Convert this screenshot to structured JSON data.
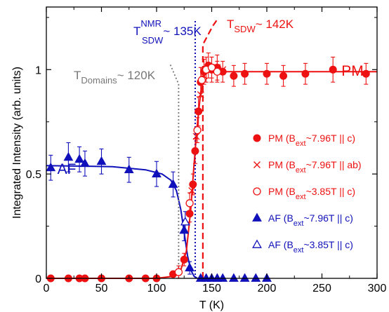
{
  "chart_data": {
    "type": "scatter",
    "xlabel": "T (K)",
    "ylabel": "Integrated Intensity (arb. units)",
    "xlim": [
      0,
      300
    ],
    "ylim": [
      0,
      1.3
    ],
    "xticks": [
      0,
      50,
      100,
      150,
      200,
      250,
      300
    ],
    "yticks": [
      {
        "value": 0,
        "label": "0"
      },
      {
        "value": 0.5,
        "label": "0.5"
      },
      {
        "value": 1,
        "label": "1"
      }
    ],
    "grid": false,
    "legend_position": "right",
    "colors": {
      "pm": "#ee1111",
      "af": "#1111bb",
      "nmr": "#1111bb",
      "domains": "#777777",
      "axis": "#000000"
    },
    "region_labels": {
      "pm": "PM",
      "af": "AF"
    },
    "annotations": {
      "nmr": {
        "main": "T",
        "sup": "NMR",
        "sub": "SDW",
        "rest": "~ 135K",
        "x": 135
      },
      "sdw": {
        "main": "T",
        "sub": "SDW",
        "rest": "~ 142K",
        "x": 142
      },
      "domains": {
        "main": "T",
        "sub": "Domains",
        "rest": "~ 120K",
        "x": 120
      }
    },
    "series": [
      {
        "name": "PM (B_ext~7.96T || c)",
        "legend_parts": [
          "PM (B",
          "ext",
          "~7.96T || c)"
        ],
        "marker": "filled-circle",
        "color": "#ee1111",
        "points": [
          {
            "x": 4,
            "y": 0.0
          },
          {
            "x": 20,
            "y": 0.0
          },
          {
            "x": 30,
            "y": 0.0
          },
          {
            "x": 35,
            "y": 0.0
          },
          {
            "x": 50,
            "y": 0.0
          },
          {
            "x": 75,
            "y": 0.0
          },
          {
            "x": 90,
            "y": 0.0
          },
          {
            "x": 100,
            "y": 0.0
          },
          {
            "x": 115,
            "y": 0.02
          },
          {
            "x": 125,
            "y": 0.09,
            "err": 0.03
          },
          {
            "x": 130,
            "y": 0.31,
            "err": 0.04
          },
          {
            "x": 133,
            "y": 0.45,
            "err": 0.05
          },
          {
            "x": 135,
            "y": 0.61,
            "err": 0.06
          },
          {
            "x": 138,
            "y": 0.8,
            "err": 0.07
          },
          {
            "x": 140,
            "y": 0.94,
            "err": 0.07
          },
          {
            "x": 143,
            "y": 0.99,
            "err": 0.06
          },
          {
            "x": 147,
            "y": 1.02,
            "err": 0.06
          },
          {
            "x": 150,
            "y": 1.0,
            "err": 0.06
          },
          {
            "x": 155,
            "y": 1.01,
            "err": 0.06
          },
          {
            "x": 160,
            "y": 0.99,
            "err": 0.05
          },
          {
            "x": 170,
            "y": 0.97,
            "err": 0.05
          },
          {
            "x": 180,
            "y": 0.98,
            "err": 0.05
          },
          {
            "x": 200,
            "y": 0.98,
            "err": 0.05
          },
          {
            "x": 215,
            "y": 0.97,
            "err": 0.05
          },
          {
            "x": 235,
            "y": 0.98,
            "err": 0.05
          },
          {
            "x": 260,
            "y": 1.0,
            "err": 0.06
          },
          {
            "x": 290,
            "y": 0.98,
            "err": 0.05
          }
        ]
      },
      {
        "name": "PM (B_ext~7.96T || ab)",
        "legend_parts": [
          "PM (B",
          "ext",
          "~7.96T || ab)"
        ],
        "marker": "cross",
        "color": "#ee1111",
        "points": [
          {
            "x": 132,
            "y": 0.42
          },
          {
            "x": 136,
            "y": 0.68
          },
          {
            "x": 140,
            "y": 0.88
          },
          {
            "x": 143,
            "y": 0.97
          },
          {
            "x": 150,
            "y": 1.0
          },
          {
            "x": 155,
            "y": 1.01
          },
          {
            "x": 160,
            "y": 1.0
          }
        ]
      },
      {
        "name": "PM (B_ext~3.85T || c)",
        "legend_parts": [
          "PM (B",
          "ext",
          "~3.85T || c)"
        ],
        "marker": "open-circle",
        "color": "#ee1111",
        "points": [
          {
            "x": 120,
            "y": 0.03,
            "err": 0.03
          },
          {
            "x": 130,
            "y": 0.36,
            "err": 0.05
          },
          {
            "x": 137,
            "y": 0.71,
            "err": 0.06
          },
          {
            "x": 141,
            "y": 0.95,
            "err": 0.06
          },
          {
            "x": 145,
            "y": 1.0,
            "err": 0.06
          },
          {
            "x": 150,
            "y": 1.01,
            "err": 0.05
          },
          {
            "x": 155,
            "y": 0.99,
            "err": 0.05
          }
        ]
      },
      {
        "name": "AF (B_ext~7.96T || c)",
        "legend_parts": [
          "AF (B",
          "ext",
          "~7.96T || c)"
        ],
        "marker": "filled-triangle",
        "color": "#1111bb",
        "points": [
          {
            "x": 4,
            "y": 0.53,
            "err": 0.06
          },
          {
            "x": 20,
            "y": 0.58,
            "err": 0.07
          },
          {
            "x": 30,
            "y": 0.57,
            "err": 0.06
          },
          {
            "x": 35,
            "y": 0.55,
            "err": 0.06
          },
          {
            "x": 50,
            "y": 0.56,
            "err": 0.06
          },
          {
            "x": 75,
            "y": 0.52,
            "err": 0.06
          },
          {
            "x": 100,
            "y": 0.5,
            "err": 0.06
          },
          {
            "x": 115,
            "y": 0.45,
            "err": 0.06
          },
          {
            "x": 125,
            "y": 0.23,
            "err": 0.05
          },
          {
            "x": 130,
            "y": 0.05,
            "err": 0.03
          },
          {
            "x": 140,
            "y": 0.0
          },
          {
            "x": 145,
            "y": 0.0
          },
          {
            "x": 150,
            "y": 0.0
          },
          {
            "x": 155,
            "y": 0.0
          },
          {
            "x": 160,
            "y": 0.0
          },
          {
            "x": 170,
            "y": 0.0
          },
          {
            "x": 180,
            "y": 0.0
          },
          {
            "x": 190,
            "y": 0.0
          },
          {
            "x": 200,
            "y": 0.0
          }
        ]
      },
      {
        "name": "AF (B_ext~3.85T || c)",
        "legend_parts": [
          "AF (B",
          "ext",
          "~3.85T || c)"
        ],
        "marker": "open-triangle",
        "color": "#1111bb",
        "points": [
          {
            "x": 126,
            "y": 0.27,
            "err": 0.05
          }
        ]
      }
    ],
    "fits": {
      "pm": [
        [
          0,
          0
        ],
        [
          100,
          0.0
        ],
        [
          115,
          0.01
        ],
        [
          122,
          0.04
        ],
        [
          127,
          0.13
        ],
        [
          131,
          0.33
        ],
        [
          134,
          0.55
        ],
        [
          137,
          0.74
        ],
        [
          140,
          0.89
        ],
        [
          143,
          0.97
        ],
        [
          147,
          0.99
        ],
        [
          155,
          0.99
        ],
        [
          300,
          0.99
        ]
      ],
      "af": [
        [
          0,
          0.54
        ],
        [
          60,
          0.535
        ],
        [
          90,
          0.52
        ],
        [
          105,
          0.5
        ],
        [
          113,
          0.47
        ],
        [
          118,
          0.42
        ],
        [
          122,
          0.33
        ],
        [
          125,
          0.22
        ],
        [
          128,
          0.11
        ],
        [
          131,
          0.04
        ],
        [
          134,
          0.01
        ],
        [
          137,
          0.0
        ]
      ],
      "sdw_dashed": [
        [
          142,
          0
        ],
        [
          142,
          1.12
        ],
        [
          151,
          1.21
        ],
        [
          155,
          1.24
        ]
      ],
      "domains_dotted": [
        [
          120,
          0
        ],
        [
          120,
          0.93
        ],
        [
          112,
          1.03
        ]
      ],
      "nmr_dotted": [
        [
          135,
          0
        ],
        [
          135,
          1.24
        ]
      ]
    }
  }
}
